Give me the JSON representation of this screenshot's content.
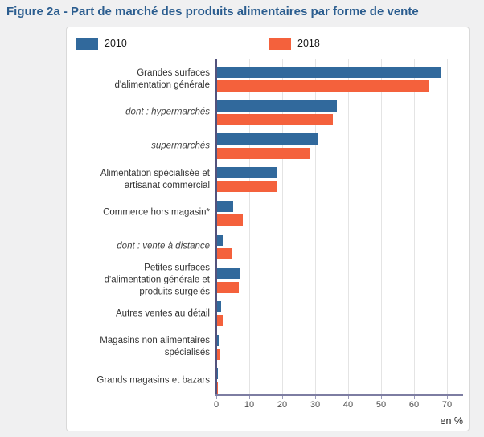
{
  "title": "Figure 2a - Part de marché des produits alimentaires par forme de vente",
  "legend": {
    "items": [
      {
        "label": "2010",
        "color": "#31699c"
      },
      {
        "label": "2018",
        "color": "#f4613c"
      }
    ]
  },
  "axis": {
    "ticks": [
      "0",
      "10",
      "20",
      "30",
      "40",
      "50",
      "60",
      "70"
    ],
    "tick_values": [
      0,
      10,
      20,
      30,
      40,
      50,
      60,
      70
    ],
    "unit_label": "en %"
  },
  "chart_data": {
    "type": "bar",
    "orientation": "horizontal",
    "title": "Figure 2a - Part de marché des produits alimentaires par forme de vente",
    "categories": [
      "Grandes surfaces\nd'alimentation générale",
      "dont : hypermarchés",
      "supermarchés",
      "Alimentation spécialisée et\nartisanat commercial",
      "Commerce hors magasin*",
      "dont : vente à distance",
      "Petites surfaces\nd'alimentation générale et\nproduits surgelés",
      "Autres ventes au détail",
      "Magasins non alimentaires\nspécialisés",
      "Grands magasins et bazars"
    ],
    "categories_italic": [
      false,
      true,
      true,
      false,
      false,
      true,
      false,
      false,
      false,
      false
    ],
    "series": [
      {
        "name": "2010",
        "color": "#31699c",
        "values": [
          67.7,
          36.4,
          30.6,
          18.1,
          4.9,
          1.6,
          7.1,
          1.1,
          0.7,
          0.1
        ]
      },
      {
        "name": "2018",
        "color": "#f4613c",
        "values": [
          64.3,
          35.0,
          28.0,
          18.4,
          7.8,
          4.4,
          6.7,
          1.7,
          1.0,
          0.2
        ]
      }
    ],
    "xlim": [
      0,
      75
    ],
    "xlabel": "en %",
    "grid": true,
    "legend_position": "top"
  },
  "colors": {
    "background": "#f0f0f1",
    "panel": "#ffffff",
    "panel_border": "#d9d9d9",
    "title": "#2b5d8f",
    "gridline": "#e4e4e4",
    "x_axis": "#7d7da2",
    "y_axis": "#53537d",
    "tick_text": "#4a4a4a",
    "label_text": "#333333"
  }
}
